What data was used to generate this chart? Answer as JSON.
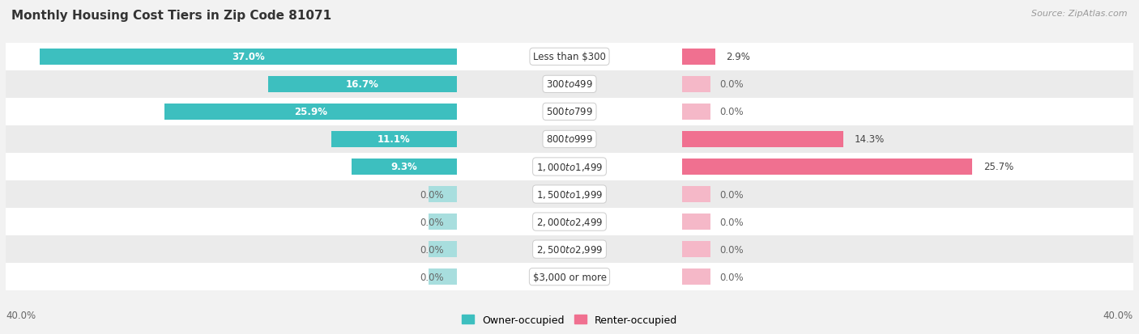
{
  "title": "Monthly Housing Cost Tiers in Zip Code 81071",
  "source": "Source: ZipAtlas.com",
  "categories": [
    "Less than $300",
    "$300 to $499",
    "$500 to $799",
    "$800 to $999",
    "$1,000 to $1,499",
    "$1,500 to $1,999",
    "$2,000 to $2,499",
    "$2,500 to $2,999",
    "$3,000 or more"
  ],
  "owner_values": [
    37.0,
    16.7,
    25.9,
    11.1,
    9.3,
    0.0,
    0.0,
    0.0,
    0.0
  ],
  "renter_values": [
    2.9,
    0.0,
    0.0,
    14.3,
    25.7,
    0.0,
    0.0,
    0.0,
    0.0
  ],
  "owner_color": "#3DBFBF",
  "renter_color": "#F07090",
  "owner_color_faint": "#A8DEDE",
  "renter_color_faint": "#F5B8C8",
  "axis_limit": 40.0,
  "background_color": "#F2F2F2",
  "row_colors": [
    "#FFFFFF",
    "#EBEBEB"
  ],
  "title_fontsize": 11,
  "label_fontsize": 8.5,
  "category_fontsize": 8.5,
  "legend_fontsize": 9,
  "bar_height": 0.6,
  "zero_stub": 2.5
}
